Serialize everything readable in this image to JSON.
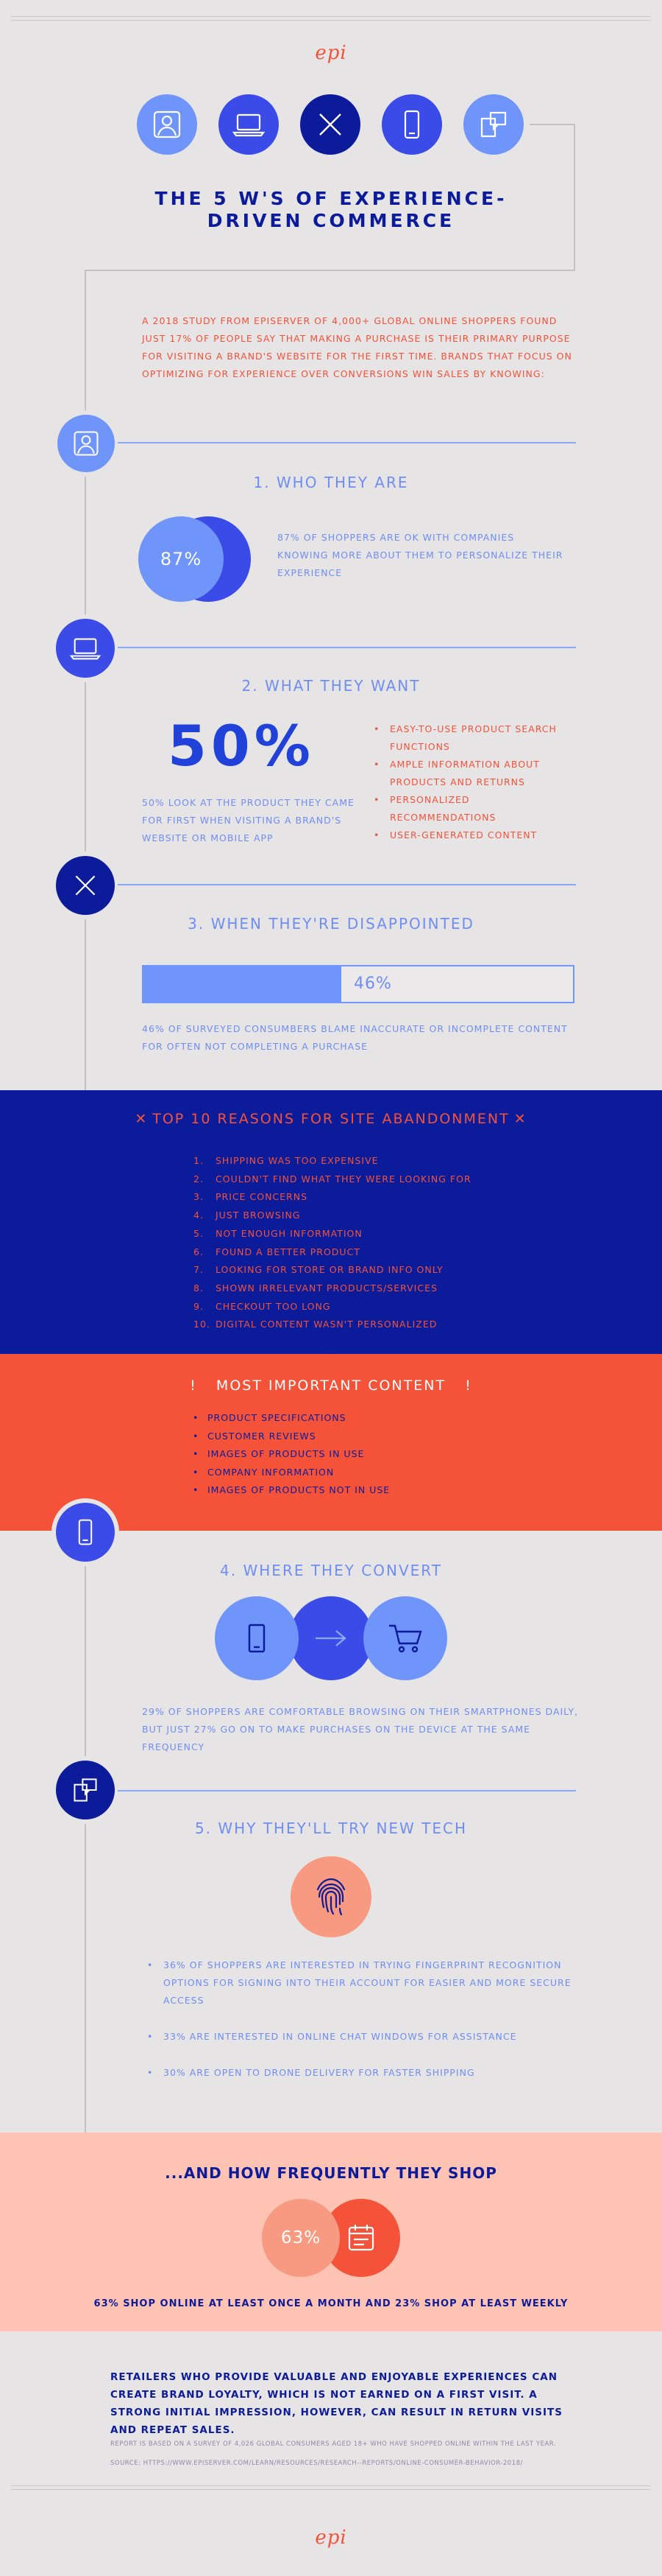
{
  "header": {
    "logo": "epi"
  },
  "title": {
    "line1": "THE 5 W'S OF  EXPERIENCE-",
    "line2": "DRIVEN COMMERCE"
  },
  "intro": "A 2018 STUDY FROM EPISERVER OF 4,000+ GLOBAL ONLINE SHOPPERS FOUND JUST 17% OF PEOPLE SAY THAT MAKING A PURCHASE IS THEIR PRIMARY PURPOSE FOR VISITING A BRAND'S WEBSITE FOR THE FIRST TIME. BRANDS THAT FOCUS ON OPTIMIZING FOR EXPERIENCE OVER CONVERSIONS WIN SALES BY KNOWING:",
  "s1": {
    "heading": "1. WHO THEY ARE",
    "stat": "87%",
    "text": "87% OF SHOPPERS ARE OK WITH COMPANIES KNOWING MORE ABOUT THEM TO PERSONALIZE THEIR EXPERIENCE"
  },
  "s2": {
    "heading": "2. WHAT THEY WANT",
    "stat": "50%",
    "text": "50% LOOK AT THE PRODUCT THEY CAME FOR FIRST WHEN VISITING A BRAND'S WEBSITE OR MOBILE APP",
    "items": [
      "EASY-TO-USE PRODUCT SEARCH FUNCTIONS",
      "AMPLE INFORMATION ABOUT PRODUCTS AND RETURNS",
      "PERSONALIZED RECOMMENDATIONS",
      "USER-GENERATED CONTENT"
    ]
  },
  "s3": {
    "heading": "3. WHEN THEY'RE DISAPPOINTED",
    "stat": "46%",
    "progress": 0.46,
    "text": "46% OF SURVEYED CONSUMBERS BLAME INACCURATE OR INCOMPLETE CONTENT FOR OFTEN NOT COMPLETING A PURCHASE"
  },
  "top10": {
    "heading": "TOP 10 REASONS FOR SITE ABANDONMENT",
    "items": [
      {
        "num": "1.",
        "text": "SHIPPING WAS TOO EXPENSIVE"
      },
      {
        "num": "2.",
        "text": "COULDN'T FIND WHAT THEY WERE LOOKING FOR"
      },
      {
        "num": "3.",
        "text": "PRICE CONCERNS"
      },
      {
        "num": "4.",
        "text": "JUST BROWSING"
      },
      {
        "num": "5.",
        "text": "NOT ENOUGH INFORMATION"
      },
      {
        "num": "6.",
        "text": "FOUND A BETTER PRODUCT"
      },
      {
        "num": "7.",
        "text": "LOOKING FOR STORE OR BRAND INFO ONLY"
      },
      {
        "num": "8.",
        "text": "SHOWN IRRELEVANT PRODUCTS/SERVICES"
      },
      {
        "num": "9.",
        "text": "CHECKOUT TOO LONG"
      },
      {
        "num": "10.",
        "text": "DIGITAL CONTENT WASN'T PERSONALIZED"
      }
    ]
  },
  "important": {
    "heading": "MOST IMPORTANT CONTENT",
    "items": [
      "PRODUCT SPECIFICATIONS",
      "CUSTOMER REVIEWS",
      "IMAGES OF PRODUCTS IN USE",
      "COMPANY INFORMATION",
      "IMAGES OF PRODUCTS NOT IN USE"
    ]
  },
  "s4": {
    "heading": "4. WHERE THEY CONVERT",
    "text": "29% OF SHOPPERS ARE COMFORTABLE BROWSING ON THEIR SMARTPHONES DAILY, BUT JUST 27% GO ON TO MAKE PURCHASES ON THE DEVICE AT THE SAME FREQUENCY"
  },
  "s5": {
    "heading": "5. WHY THEY'LL TRY NEW TECH",
    "items": [
      "36% OF SHOPPERS ARE INTERESTED IN TRYING FINGERPRINT RECOGNITION OPTIONS FOR SIGNING INTO THEIR ACCOUNT FOR EASIER AND MORE SECURE ACCESS",
      "33% ARE INTERESTED IN ONLINE CHAT WINDOWS FOR ASSISTANCE",
      "30% ARE OPEN TO DRONE DELIVERY FOR FASTER SHIPPING"
    ]
  },
  "freq": {
    "heading": "...AND HOW FREQUENTLY THEY SHOP",
    "stat": "63%",
    "text": "63% SHOP ONLINE AT LEAST ONCE A MONTH AND 23% SHOP AT LEAST WEEKLY"
  },
  "closing": "RETAILERS WHO PROVIDE VALUABLE AND ENJOYABLE EXPERIENCES CAN CREATE BRAND LOYALTY, WHICH IS NOT EARNED ON A FIRST VISIT. A STRONG INITIAL IMPRESSION, HOWEVER, CAN RESULT IN RETURN VISITS AND REPEAT SALES.",
  "footnote": "REPORT IS BASED ON A SURVEY OF 4,026 GLOBAL CONSUMERS AGED 18+ WHO HAVE SHOPPED ONLINE WITHIN THE LAST YEAR.",
  "source": "SOURCE: HTTPS://WWW.EPISERVER.COM/LEARN/RESOURCES/RESEARCH--REPORTS/ONLINE-CONSUMER-BEHAVIOR-2018/",
  "colors": {
    "navy": "#0c1b9a",
    "blue": "#3a4be8",
    "light_blue": "#6f95fb",
    "coral": "#f4533a",
    "peach": "#fec3b2",
    "bg": "#e6e4e4"
  }
}
